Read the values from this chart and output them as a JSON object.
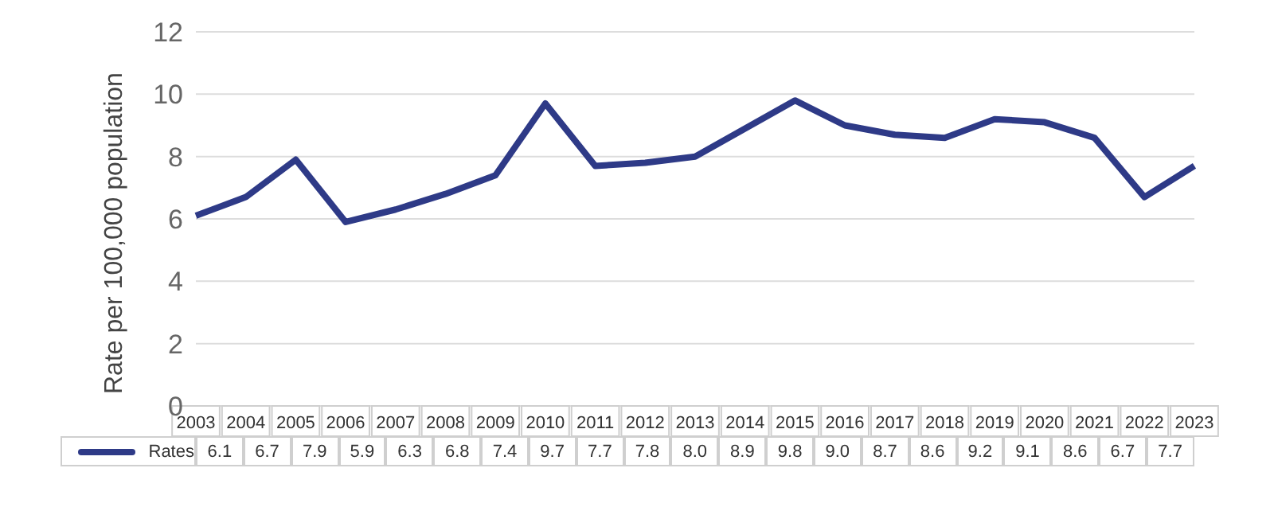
{
  "chart_data": {
    "type": "line",
    "ylabel": "Rate per 100,000 population",
    "categories": [
      "2003",
      "2004",
      "2005",
      "2006",
      "2007",
      "2008",
      "2009",
      "2010",
      "2011",
      "2012",
      "2013",
      "2014",
      "2015",
      "2016",
      "2017",
      "2018",
      "2019",
      "2020",
      "2021",
      "2022",
      "2023"
    ],
    "series": [
      {
        "name": "Rates",
        "color": "#2e3a87",
        "values": [
          6.1,
          6.7,
          7.9,
          5.9,
          6.3,
          6.8,
          7.4,
          9.7,
          7.7,
          7.8,
          8.0,
          8.9,
          9.8,
          9.0,
          8.7,
          8.6,
          9.2,
          9.1,
          8.6,
          6.7,
          7.7
        ],
        "value_labels": [
          "6.1",
          "6.7",
          "7.9",
          "5.9",
          "6.3",
          "6.8",
          "7.4",
          "9.7",
          "7.7",
          "7.8",
          "8.0",
          "8.9",
          "9.8",
          "9.0",
          "8.7",
          "8.6",
          "9.2",
          "9.1",
          "8.6",
          "6.7",
          "7.7"
        ]
      }
    ],
    "ylim": [
      0,
      12
    ],
    "yticks": [
      0,
      2,
      4,
      6,
      8,
      10,
      12
    ],
    "grid": "y",
    "legend": "bottom",
    "marker": "none",
    "line_style": "solid"
  }
}
